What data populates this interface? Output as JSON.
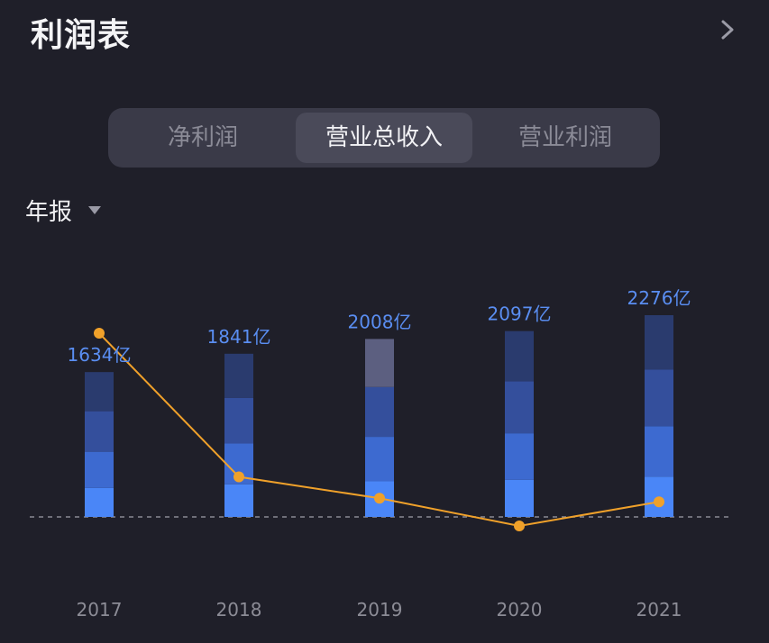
{
  "header": {
    "title": "利润表",
    "chevron_icon": "chevron-right-icon"
  },
  "tabs": [
    {
      "label": "净利润",
      "active": false
    },
    {
      "label": "营业总收入",
      "active": true
    },
    {
      "label": "营业利润",
      "active": false
    }
  ],
  "period": {
    "label": "年报",
    "caret_icon": "caret-down-icon"
  },
  "colors": {
    "bar_shades": [
      "#4a86f7",
      "#3d6ad0",
      "#344f9c",
      "#2a3b6e"
    ],
    "highlight_segment": "#5c5f80",
    "line": "#f0a12a",
    "label": "#5a8ef2",
    "axis_text": "#8c8c96",
    "baseline": "#8a8a94"
  },
  "chart_data": {
    "type": "bar",
    "categories": [
      "2017",
      "2018",
      "2019",
      "2020",
      "2021"
    ],
    "values": [
      1634,
      1841,
      2008,
      2097,
      2276
    ],
    "data_labels": [
      "1634亿",
      "1841亿",
      "2008亿",
      "2097亿",
      "2276亿"
    ],
    "unit": "亿",
    "ylim": [
      0,
      2276
    ],
    "line_series": {
      "values": [
        20.5,
        4.4,
        2.0,
        -1.1,
        1.6
      ]
    },
    "highlight_index": 2
  }
}
